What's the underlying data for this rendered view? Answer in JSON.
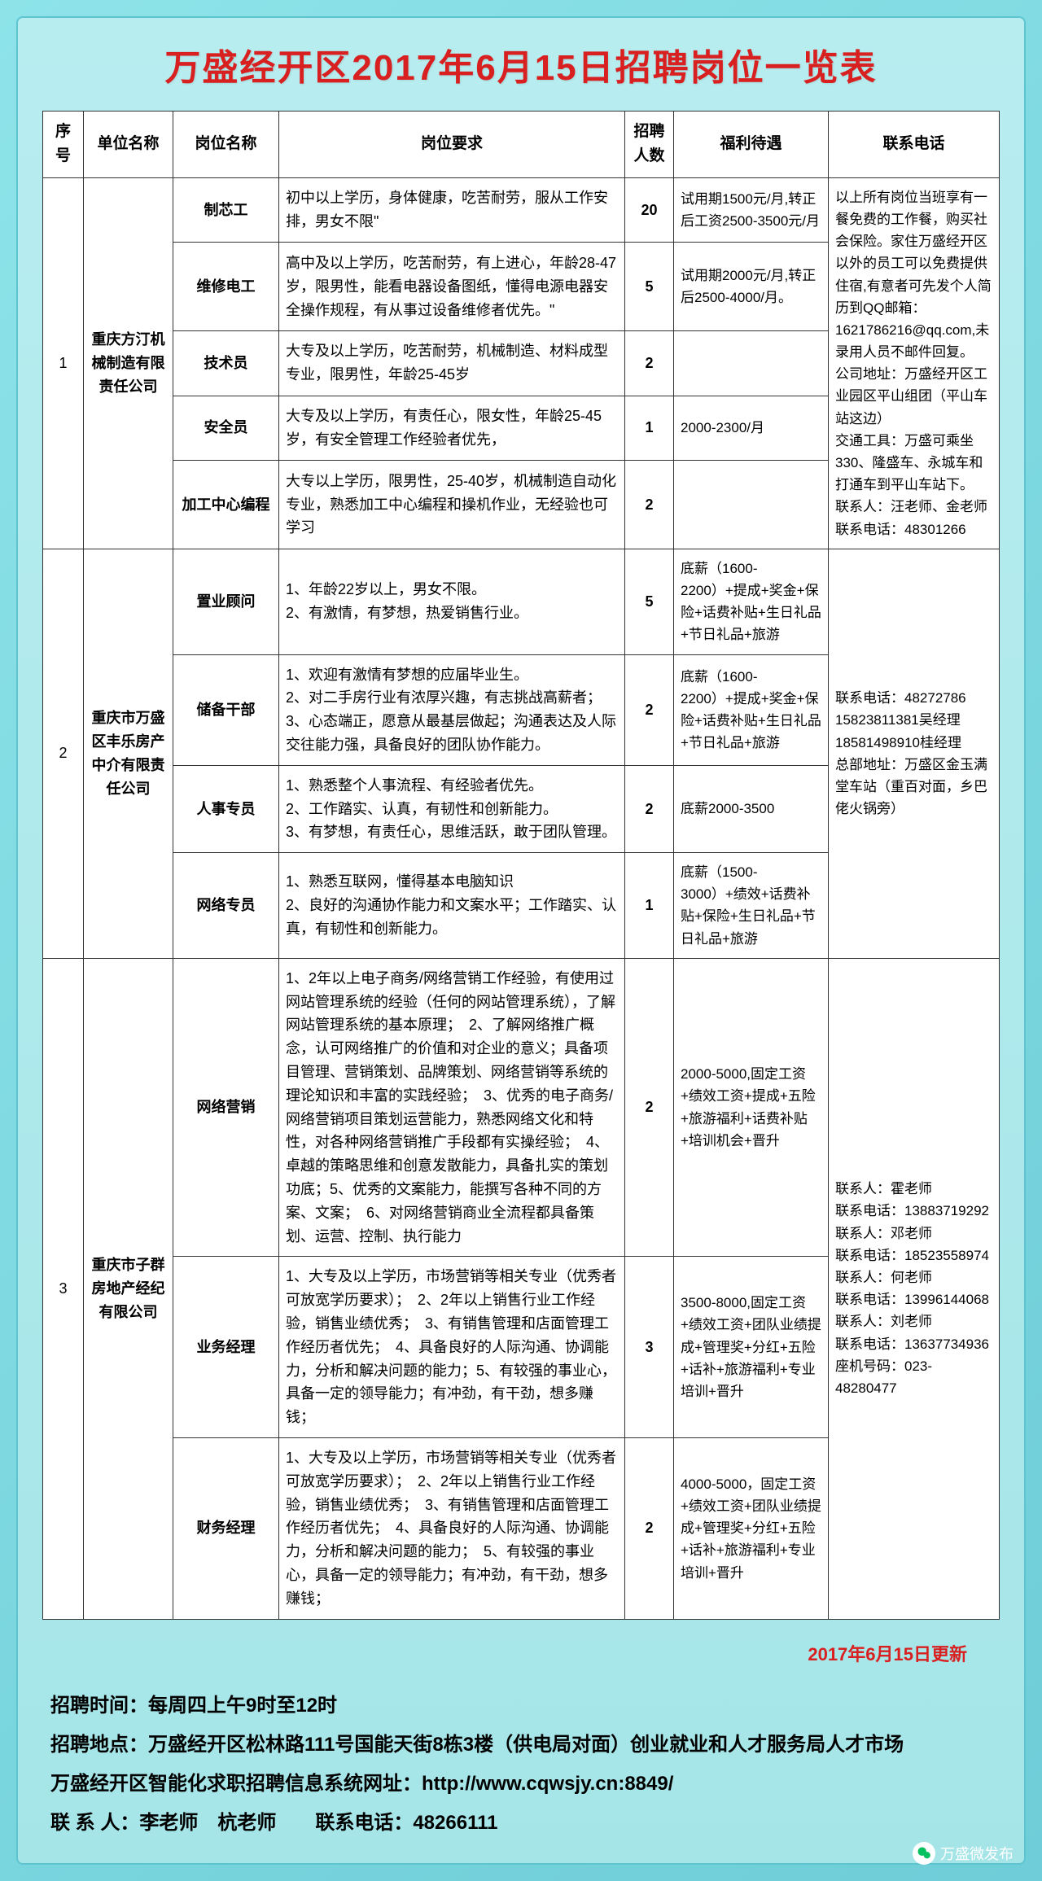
{
  "title": "万盛经开区2017年6月15日招聘岗位一览表",
  "headers": {
    "seq": "序号",
    "company": "单位名称",
    "position": "岗位名称",
    "requirement": "岗位要求",
    "count": "招聘人数",
    "benefit": "福利待遇",
    "contact": "联系电话"
  },
  "companies": [
    {
      "seq": "1",
      "name": "重庆方汀机械制造有限责任公司",
      "contact": "以上所有岗位当班享有一餐免费的工作餐，购买社会保险。家住万盛经开区以外的员工可以免费提供住宿,有意者可先发个人简历到QQ邮箱：1621786216@qq.com,未录用人员不邮件回复。\n公司地址：万盛经开区工业园区平山组团（平山车站这边）\n交通工具：万盛可乘坐330、隆盛车、永城车和打通车到平山车站下。\n联系人：汪老师、金老师　　联系电话：48301266",
      "positions": [
        {
          "name": "制芯工",
          "req": "初中以上学历，身体健康，吃苦耐劳，服从工作安排，男女不限\"",
          "count": "20",
          "benefit": "试用期1500元/月,转正后工资2500-3500元/月"
        },
        {
          "name": "维修电工",
          "req": "高中及以上学历，吃苦耐劳，有上进心，年龄28-47岁，限男性，能看电器设备图纸，懂得电源电器安全操作规程，有从事过设备维修者优先。\"",
          "count": "5",
          "benefit": "试用期2000元/月,转正后2500-4000/月。"
        },
        {
          "name": "技术员",
          "req": "大专及以上学历，吃苦耐劳，机械制造、材料成型专业，限男性，年龄25-45岁",
          "count": "2",
          "benefit": ""
        },
        {
          "name": "安全员",
          "req": "大专及以上学历，有责任心，限女性，年龄25-45岁，有安全管理工作经验者优先，",
          "count": "1",
          "benefit": "2000-2300/月"
        },
        {
          "name": "加工中心编程",
          "req": "大专以上学历，限男性，25-40岁，机械制造自动化专业，熟悉加工中心编程和操机作业，无经验也可学习",
          "count": "2",
          "benefit": ""
        }
      ]
    },
    {
      "seq": "2",
      "name": "重庆市万盛区丰乐房产中介有限责任公司",
      "contact": "联系电话：48272786\n15823811381吴经理\n18581498910桂经理\n总部地址：万盛区金玉满堂车站（重百对面，乡巴佬火锅旁）",
      "positions": [
        {
          "name": "置业顾问",
          "req": "1、年龄22岁以上，男女不限。\n2、有激情，有梦想，热爱销售行业。",
          "count": "5",
          "benefit": "底薪（1600-2200）+提成+奖金+保险+话费补贴+生日礼品+节日礼品+旅游"
        },
        {
          "name": "储备干部",
          "req": "1、欢迎有激情有梦想的应届毕业生。\n2、对二手房行业有浓厚兴趣，有志挑战高薪者；\n3、心态端正，愿意从最基层做起；沟通表达及人际交往能力强，具备良好的团队协作能力。",
          "count": "2",
          "benefit": "底薪（1600-2200）+提成+奖金+保险+话费补贴+生日礼品+节日礼品+旅游"
        },
        {
          "name": "人事专员",
          "req": "1、熟悉整个人事流程、有经验者优先。\n2、工作踏实、认真，有韧性和创新能力。\n3、有梦想，有责任心，思维活跃，敢于团队管理。",
          "count": "2",
          "benefit": "底薪2000-3500"
        },
        {
          "name": "网络专员",
          "req": "1、熟悉互联网，懂得基本电脑知识\n2、良好的沟通协作能力和文案水平；工作踏实、认真，有韧性和创新能力。",
          "count": "1",
          "benefit": "底薪（1500-3000）+绩效+话费补贴+保险+生日礼品+节日礼品+旅游"
        }
      ]
    },
    {
      "seq": "3",
      "name": "重庆市子群房地产经纪有限公司",
      "contact": "联系人：霍老师\n联系电话：13883719292\n联系人：邓老师\n联系电话：18523558974\n联系人：何老师\n联系电话：13996144068\n联系人：刘老师\n联系电话：13637734936\n座机号码：023-48280477",
      "positions": [
        {
          "name": "网络营销",
          "req": "1、2年以上电子商务/网络营销工作经验，有使用过网站管理系统的经验（任何的网站管理系统），了解网站管理系统的基本原理；　2、了解网络推广概念，认可网络推广的价值和对企业的意义；具备项目管理、营销策划、品牌策划、网络营销等系统的理论知识和丰富的实践经验；　3、优秀的电子商务/网络营销项目策划运营能力，熟悉网络文化和特性，对各种网络营销推广手段都有实操经验；　4、卓越的策略思维和创意发散能力，具备扎实的策划功底；5、优秀的文案能力，能撰写各种不同的方案、文案；　6、对网络营销商业全流程都具备策划、运营、控制、执行能力",
          "count": "2",
          "benefit": "2000-5000,固定工资+绩效工资+提成+五险+旅游福利+话费补贴+培训机会+晋升"
        },
        {
          "name": "业务经理",
          "req": "1、大专及以上学历，市场营销等相关专业（优秀者可放宽学历要求）；　2、2年以上销售行业工作经验，销售业绩优秀；　3、有销售管理和店面管理工作经历者优先；　4、具备良好的人际沟通、协调能力，分析和解决问题的能力；5、有较强的事业心，具备一定的领导能力；有冲劲，有干劲，想多赚钱；",
          "count": "3",
          "benefit": "3500-8000,固定工资+绩效工资+团队业绩提成+管理奖+分红+五险+话补+旅游福利+专业培训+晋升"
        },
        {
          "name": "财务经理",
          "req": "1、大专及以上学历，市场营销等相关专业（优秀者可放宽学历要求）；　2、2年以上销售行业工作经验，销售业绩优秀；　3、有销售管理和店面管理工作经历者优先；　4、具备良好的人际沟通、协调能力，分析和解决问题的能力；　5、有较强的事业心，具备一定的领导能力；有冲劲，有干劲，想多赚钱；",
          "count": "2",
          "benefit": "4000-5000，固定工资+绩效工资+团队业绩提成+管理奖+分红+五险+话补+旅游福利+专业培训+晋升"
        }
      ]
    }
  ],
  "update_note": "2017年6月15日更新",
  "footer": {
    "line1": "招聘时间：每周四上午9时至12时",
    "line2": "招聘地点：万盛经开区松林路111号国能天街8栋3楼（供电局对面）创业就业和人才服务局人才市场",
    "line3": "万盛经开区智能化求职招聘信息系统网址：http://www.cqwsjy.cn:8849/",
    "line4": "联 系 人：李老师　杭老师　　联系电话：48266111"
  },
  "wechat_label": "万盛微发布"
}
